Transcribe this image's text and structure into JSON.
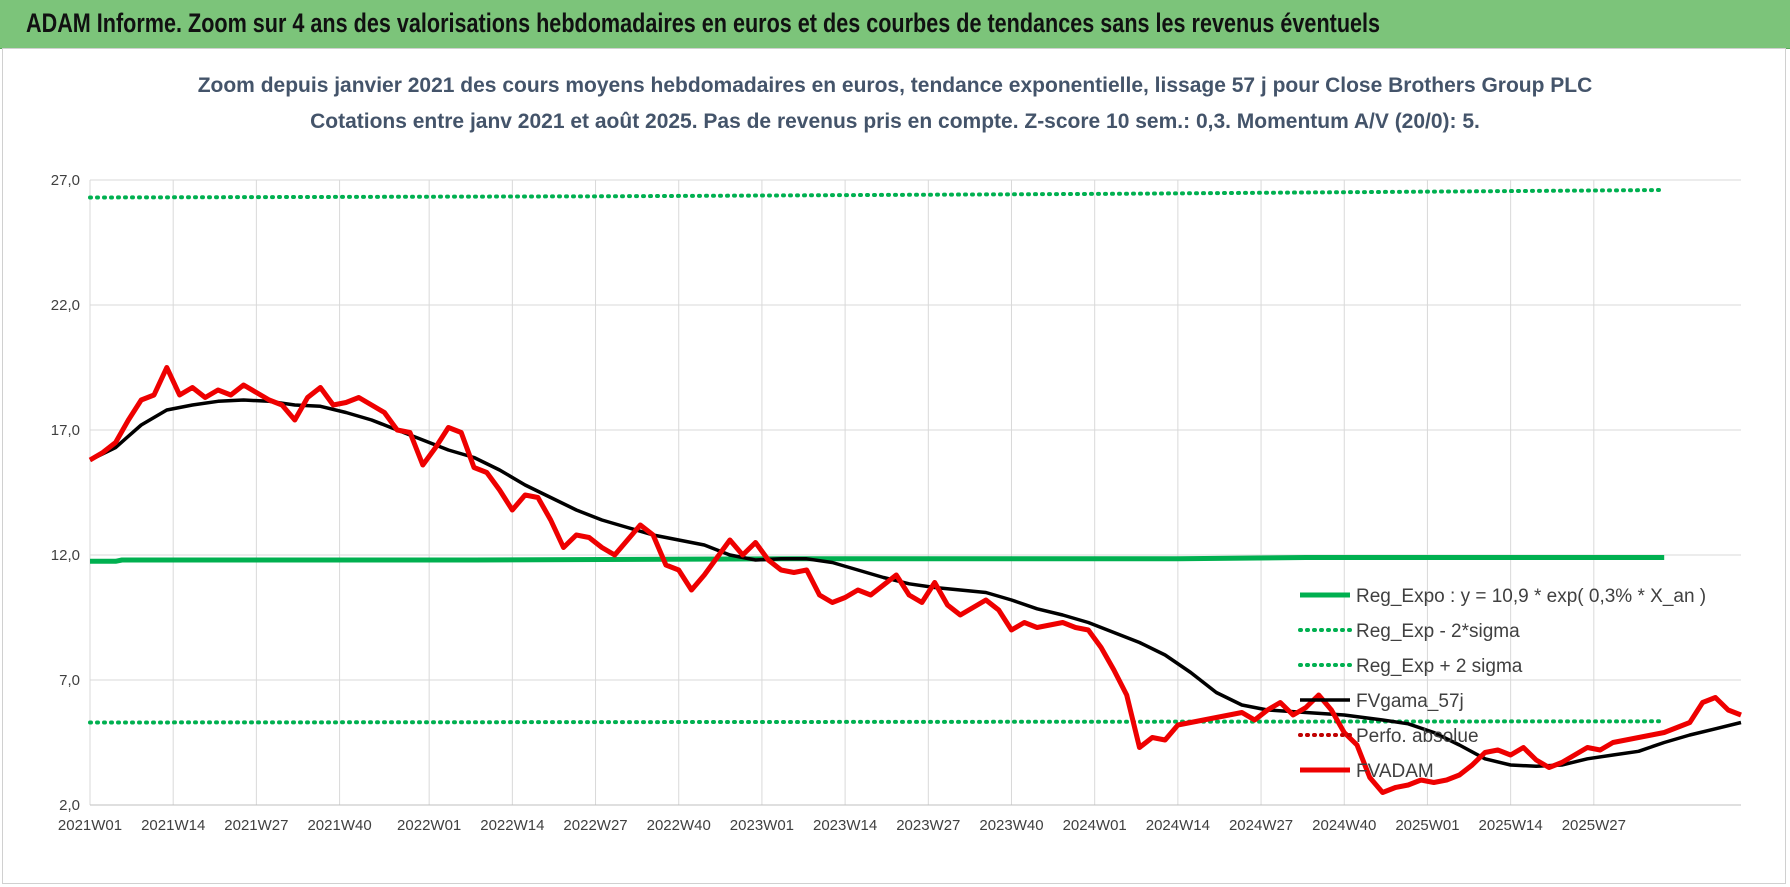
{
  "banner": {
    "title": "ADAM Informe. Zoom sur 4 ans des valorisations hebdomadaires en euros et des courbes de tendances sans les revenus éventuels"
  },
  "colors": {
    "fvadam": "#ee0000",
    "fvgama": "#000000",
    "reg_expo": "#00b050",
    "reg_band": "#00b050",
    "perfo": "#c00000",
    "grid": "#d9d9d9",
    "banner": "#7cc47a"
  },
  "chart_data": {
    "type": "line",
    "title": "Zoom depuis janvier 2021 des cours moyens hebdomadaires en euros, tendance exponentielle, lissage 57 j pour Close Brothers Group PLC",
    "subtitle": "Cotations entre janv 2021 et août 2025. Pas de revenus pris en compte. Z-score 10 sem.: 0,3. Momentum A/V (20/0): 5.",
    "xlabel": "",
    "ylabel": "",
    "ylim": [
      2.0,
      27.0
    ],
    "yticks": [
      "2,0",
      "7,0",
      "12,0",
      "17,0",
      "22,0",
      "27,0"
    ],
    "xticks": [
      "2021W01",
      "2021W14",
      "2021W27",
      "2021W40",
      "2022W01",
      "2022W14",
      "2022W27",
      "2022W40",
      "2023W01",
      "2023W14",
      "2023W27",
      "2023W40",
      "2024W01",
      "2024W14",
      "2024W27",
      "2024W40",
      "2025W01",
      "2025W14",
      "2025W27"
    ],
    "x_start": "2021W01",
    "grid": true,
    "legend_position": "right",
    "series": [
      {
        "name": "Reg_Expo : y = 10,9 * exp( 0,3% *  X_an )",
        "style": "solid-thick",
        "points": [
          [
            0,
            11.75
          ],
          [
            4,
            11.75
          ],
          [
            5,
            11.8
          ],
          [
            60,
            11.8
          ],
          [
            110,
            11.85
          ],
          [
            170,
            11.85
          ],
          [
            190,
            11.9
          ],
          [
            246,
            11.9
          ]
        ]
      },
      {
        "name": "Reg_Exp - 2*sigma",
        "style": "dotted",
        "points": [
          [
            0,
            5.3
          ],
          [
            246,
            5.35
          ]
        ]
      },
      {
        "name": "Reg_Exp + 2 sigma",
        "style": "dotted",
        "points": [
          [
            0,
            26.3
          ],
          [
            80,
            26.35
          ],
          [
            160,
            26.45
          ],
          [
            246,
            26.6
          ]
        ]
      },
      {
        "name": "FVgama_57j",
        "style": "solid",
        "points": [
          [
            0,
            15.8
          ],
          [
            4,
            16.3
          ],
          [
            8,
            17.2
          ],
          [
            12,
            17.8
          ],
          [
            16,
            18.0
          ],
          [
            20,
            18.15
          ],
          [
            24,
            18.2
          ],
          [
            28,
            18.15
          ],
          [
            32,
            18.0
          ],
          [
            36,
            17.95
          ],
          [
            40,
            17.7
          ],
          [
            44,
            17.4
          ],
          [
            48,
            17.0
          ],
          [
            52,
            16.6
          ],
          [
            56,
            16.2
          ],
          [
            60,
            15.9
          ],
          [
            64,
            15.4
          ],
          [
            68,
            14.8
          ],
          [
            72,
            14.3
          ],
          [
            76,
            13.8
          ],
          [
            80,
            13.4
          ],
          [
            84,
            13.1
          ],
          [
            88,
            12.8
          ],
          [
            92,
            12.6
          ],
          [
            96,
            12.4
          ],
          [
            100,
            12.0
          ],
          [
            104,
            11.8
          ],
          [
            108,
            11.85
          ],
          [
            112,
            11.85
          ],
          [
            116,
            11.7
          ],
          [
            120,
            11.4
          ],
          [
            124,
            11.1
          ],
          [
            128,
            10.85
          ],
          [
            132,
            10.7
          ],
          [
            136,
            10.6
          ],
          [
            140,
            10.5
          ],
          [
            144,
            10.2
          ],
          [
            148,
            9.85
          ],
          [
            152,
            9.6
          ],
          [
            156,
            9.3
          ],
          [
            160,
            8.9
          ],
          [
            164,
            8.5
          ],
          [
            168,
            8.0
          ],
          [
            172,
            7.3
          ],
          [
            176,
            6.5
          ],
          [
            180,
            6.0
          ],
          [
            184,
            5.8
          ],
          [
            190,
            5.7
          ],
          [
            196,
            5.6
          ],
          [
            202,
            5.4
          ],
          [
            206,
            5.25
          ],
          [
            210,
            4.9
          ],
          [
            214,
            4.4
          ],
          [
            218,
            3.85
          ],
          [
            222,
            3.6
          ],
          [
            226,
            3.55
          ],
          [
            230,
            3.6
          ],
          [
            234,
            3.85
          ],
          [
            238,
            4.0
          ],
          [
            242,
            4.15
          ],
          [
            246,
            4.5
          ],
          [
            250,
            4.8
          ],
          [
            254,
            5.05
          ],
          [
            258,
            5.3
          ]
        ]
      },
      {
        "name": "Perfo. absolue",
        "style": "dotted-red",
        "points": []
      },
      {
        "name": "FVADAM",
        "style": "solid-thick",
        "points": [
          [
            0,
            15.8
          ],
          [
            2,
            16.1
          ],
          [
            4,
            16.5
          ],
          [
            6,
            17.4
          ],
          [
            8,
            18.2
          ],
          [
            10,
            18.4
          ],
          [
            12,
            19.5
          ],
          [
            14,
            18.4
          ],
          [
            16,
            18.7
          ],
          [
            18,
            18.3
          ],
          [
            20,
            18.6
          ],
          [
            22,
            18.4
          ],
          [
            24,
            18.8
          ],
          [
            26,
            18.5
          ],
          [
            28,
            18.2
          ],
          [
            30,
            18.0
          ],
          [
            32,
            17.4
          ],
          [
            34,
            18.3
          ],
          [
            36,
            18.7
          ],
          [
            38,
            18.0
          ],
          [
            40,
            18.1
          ],
          [
            42,
            18.3
          ],
          [
            44,
            18.0
          ],
          [
            46,
            17.7
          ],
          [
            48,
            17.0
          ],
          [
            50,
            16.9
          ],
          [
            52,
            15.6
          ],
          [
            54,
            16.3
          ],
          [
            56,
            17.1
          ],
          [
            58,
            16.9
          ],
          [
            60,
            15.5
          ],
          [
            62,
            15.3
          ],
          [
            64,
            14.6
          ],
          [
            66,
            13.8
          ],
          [
            68,
            14.4
          ],
          [
            70,
            14.3
          ],
          [
            72,
            13.4
          ],
          [
            74,
            12.3
          ],
          [
            76,
            12.8
          ],
          [
            78,
            12.7
          ],
          [
            80,
            12.3
          ],
          [
            82,
            12.0
          ],
          [
            84,
            12.6
          ],
          [
            86,
            13.2
          ],
          [
            88,
            12.8
          ],
          [
            90,
            11.6
          ],
          [
            92,
            11.4
          ],
          [
            94,
            10.6
          ],
          [
            96,
            11.2
          ],
          [
            98,
            11.9
          ],
          [
            100,
            12.6
          ],
          [
            102,
            12.0
          ],
          [
            104,
            12.5
          ],
          [
            106,
            11.8
          ],
          [
            108,
            11.4
          ],
          [
            110,
            11.3
          ],
          [
            112,
            11.4
          ],
          [
            114,
            10.4
          ],
          [
            116,
            10.1
          ],
          [
            118,
            10.3
          ],
          [
            120,
            10.6
          ],
          [
            122,
            10.4
          ],
          [
            124,
            10.8
          ],
          [
            126,
            11.2
          ],
          [
            128,
            10.4
          ],
          [
            130,
            10.1
          ],
          [
            132,
            10.9
          ],
          [
            134,
            10.0
          ],
          [
            136,
            9.6
          ],
          [
            138,
            9.9
          ],
          [
            140,
            10.2
          ],
          [
            142,
            9.8
          ],
          [
            144,
            9.0
          ],
          [
            146,
            9.3
          ],
          [
            148,
            9.1
          ],
          [
            150,
            9.2
          ],
          [
            152,
            9.3
          ],
          [
            154,
            9.1
          ],
          [
            156,
            9.0
          ],
          [
            158,
            8.3
          ],
          [
            160,
            7.4
          ],
          [
            162,
            6.4
          ],
          [
            164,
            4.3
          ],
          [
            166,
            4.7
          ],
          [
            168,
            4.6
          ],
          [
            170,
            5.2
          ],
          [
            172,
            5.3
          ],
          [
            174,
            5.4
          ],
          [
            176,
            5.5
          ],
          [
            178,
            5.6
          ],
          [
            180,
            5.7
          ],
          [
            182,
            5.4
          ],
          [
            184,
            5.8
          ],
          [
            186,
            6.1
          ],
          [
            188,
            5.6
          ],
          [
            190,
            5.9
          ],
          [
            192,
            6.4
          ],
          [
            194,
            5.8
          ],
          [
            196,
            4.9
          ],
          [
            198,
            4.4
          ],
          [
            200,
            3.1
          ],
          [
            202,
            2.5
          ],
          [
            204,
            2.7
          ],
          [
            206,
            2.8
          ],
          [
            208,
            3.0
          ],
          [
            210,
            2.9
          ],
          [
            212,
            3.0
          ],
          [
            214,
            3.2
          ],
          [
            216,
            3.6
          ],
          [
            218,
            4.1
          ],
          [
            220,
            4.2
          ],
          [
            222,
            4.0
          ],
          [
            224,
            4.3
          ],
          [
            226,
            3.8
          ],
          [
            228,
            3.5
          ],
          [
            230,
            3.7
          ],
          [
            232,
            4.0
          ],
          [
            234,
            4.3
          ],
          [
            236,
            4.2
          ],
          [
            238,
            4.5
          ],
          [
            240,
            4.6
          ],
          [
            242,
            4.7
          ],
          [
            244,
            4.8
          ],
          [
            246,
            4.9
          ],
          [
            248,
            5.1
          ],
          [
            250,
            5.3
          ],
          [
            252,
            6.1
          ],
          [
            254,
            6.3
          ],
          [
            256,
            5.8
          ],
          [
            258,
            5.6
          ]
        ]
      }
    ]
  }
}
